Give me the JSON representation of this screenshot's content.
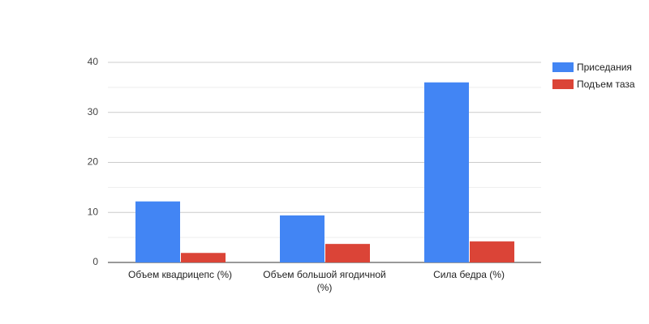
{
  "chart_data": {
    "type": "bar",
    "categories": [
      "Объем квадрицепс (%)",
      "Объем большой ягодичной (%)",
      "Сила бедра (%)"
    ],
    "series": [
      {
        "name": "Приседания",
        "color": "#4285f4",
        "values": [
          12.2,
          9.4,
          36
        ]
      },
      {
        "name": "Подъем таза",
        "color": "#db4437",
        "values": [
          1.9,
          3.7,
          4.2
        ]
      }
    ],
    "ylim": [
      0,
      40
    ],
    "yticks": [
      0,
      10,
      20,
      30,
      40
    ],
    "grid": true,
    "minor_grid": true,
    "legend": "right"
  }
}
